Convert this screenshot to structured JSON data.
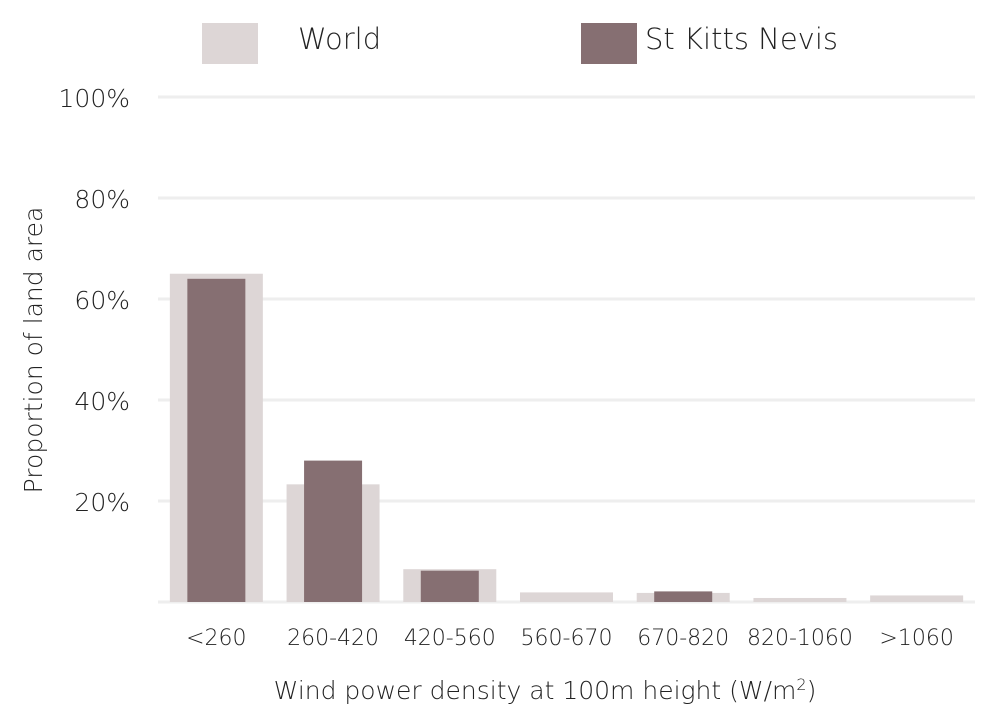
{
  "chart_data": {
    "type": "bar",
    "categories": [
      "<260",
      "260-420",
      "420-560",
      "560-670",
      "670-820",
      "820-1060",
      ">1060"
    ],
    "series": [
      {
        "name": "World",
        "color": "#ddd6d6",
        "values": [
          65,
          23.3,
          6.5,
          1.9,
          1.8,
          0.8,
          1.3
        ]
      },
      {
        "name": "St Kitts Nevis",
        "color": "#866f72",
        "values": [
          64,
          28,
          6.2,
          0,
          2.1,
          0,
          0
        ]
      }
    ],
    "title": "",
    "xlabel": "Wind power density at 100m height (W/m",
    "xlabel_superscript": "2",
    "xlabel_suffix": ")",
    "ylabel": "Proportion of land area",
    "ylim": [
      0,
      100
    ],
    "yticks": [
      0,
      20,
      40,
      60,
      80,
      100
    ],
    "ytick_labels": [
      "",
      "20%",
      "40%",
      "60%",
      "80%",
      "100%"
    ],
    "grid": true,
    "legend_position": "top",
    "gridline_color": "#eeeeee",
    "text_color": "#222222"
  }
}
